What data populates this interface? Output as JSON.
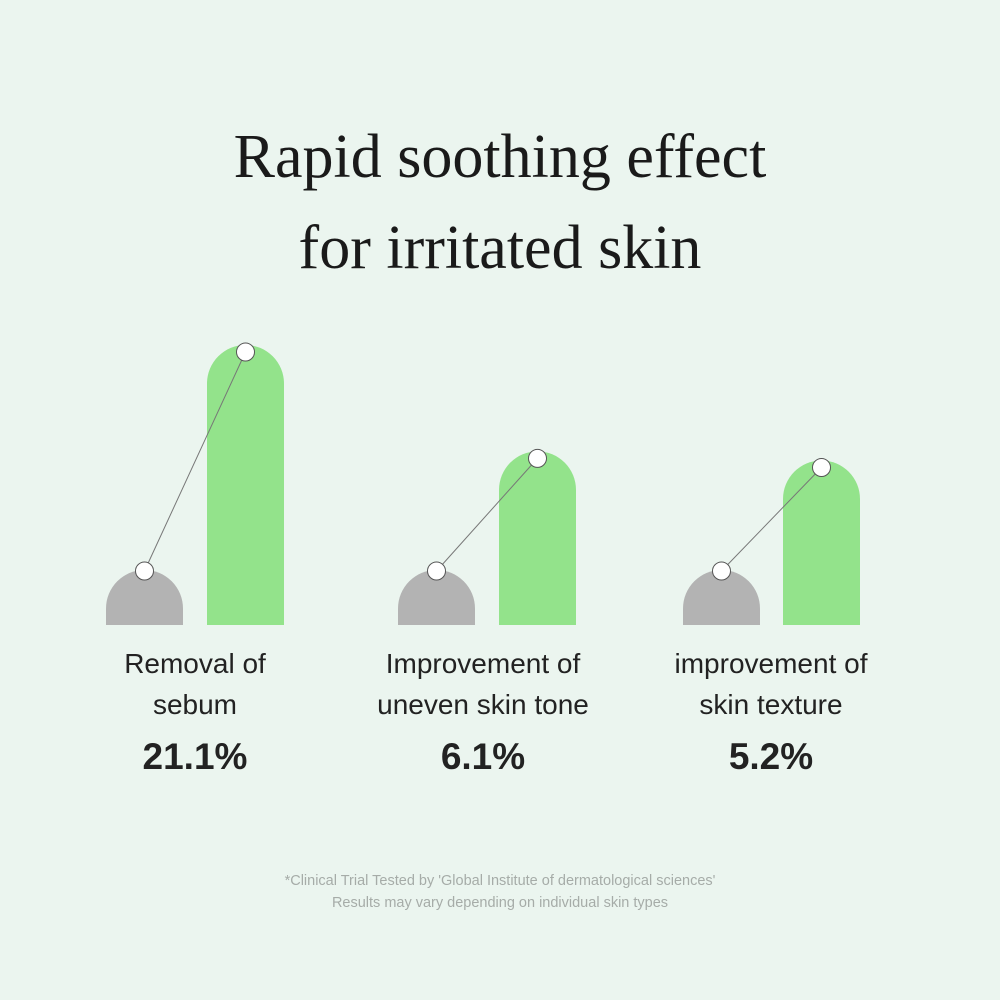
{
  "title": {
    "line1": "Rapid soothing effect",
    "line2": "for irritated skin"
  },
  "colors": {
    "background": "#ebf5ef",
    "before_bar": "#b3b3b3",
    "after_bar": "#93e38b",
    "marker": "#ffffff"
  },
  "chart_data": {
    "type": "bar",
    "categories": [
      {
        "line1": "Removal of",
        "line2": "sebum"
      },
      {
        "line1": "Improvement of",
        "line2": "uneven skin tone"
      },
      {
        "line1": "improvement of",
        "line2": "skin texture"
      }
    ],
    "data_labels": [
      "21.1%",
      "6.1%",
      "5.2%"
    ],
    "values": [
      21.1,
      6.1,
      5.2
    ]
  },
  "footnote": {
    "line1": "*Clinical Trial Tested by 'Global Institute of dermatological sciences'",
    "line2": "Results may vary depending on individual skin types"
  }
}
